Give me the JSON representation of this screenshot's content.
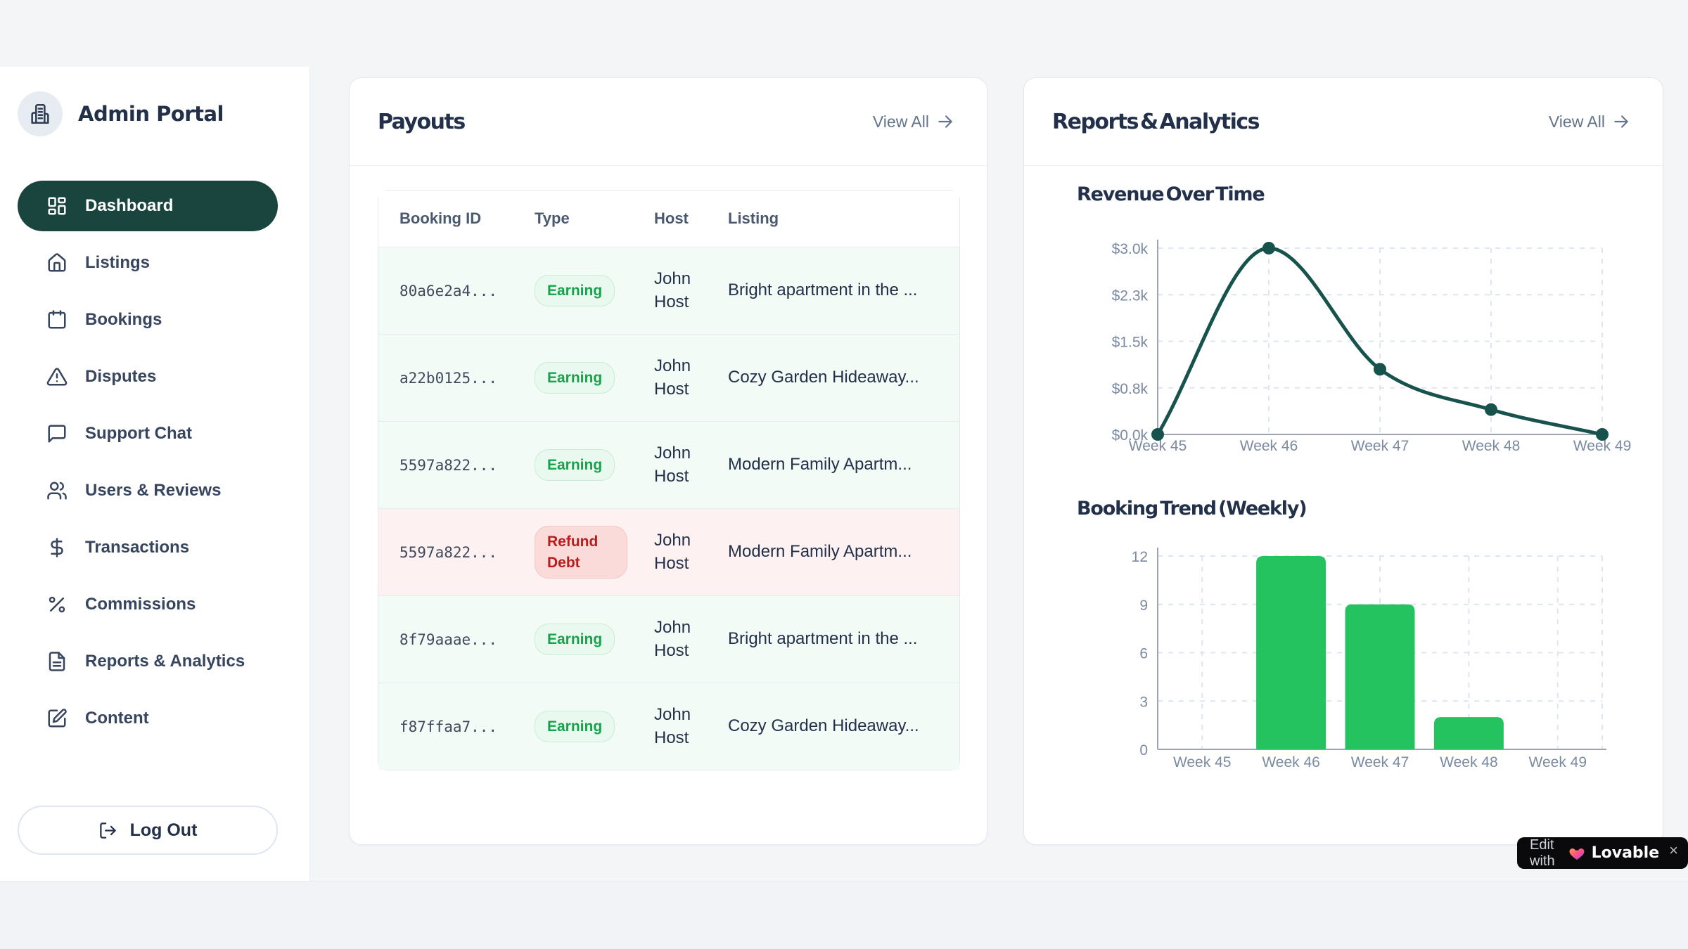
{
  "colors": {
    "accent_dark_teal": "#1a453f",
    "line_color": "#17534c",
    "bar_color": "#25c360",
    "earning_green": "#16a34a",
    "refund_red": "#bb1b1b",
    "page_background": "#f3f5f7"
  },
  "sidebar": {
    "app_title": "Admin Portal",
    "items": [
      {
        "label": "Dashboard",
        "icon": "dashboard",
        "active": true
      },
      {
        "label": "Listings",
        "icon": "home",
        "active": false
      },
      {
        "label": "Bookings",
        "icon": "calendar",
        "active": false
      },
      {
        "label": "Disputes",
        "icon": "alert-triangle",
        "active": false
      },
      {
        "label": "Support Chat",
        "icon": "message-square",
        "active": false
      },
      {
        "label": "Users & Reviews",
        "icon": "users",
        "active": false
      },
      {
        "label": "Transactions",
        "icon": "dollar",
        "active": false
      },
      {
        "label": "Commissions",
        "icon": "percent",
        "active": false
      },
      {
        "label": "Reports & Analytics",
        "icon": "file-text",
        "active": false
      },
      {
        "label": "Content",
        "icon": "file-edit",
        "active": false
      }
    ],
    "logout_label": "Log Out"
  },
  "payouts": {
    "title": "Payouts",
    "view_all_label": "View All",
    "table": {
      "headers": [
        "Booking ID",
        "Type",
        "Host",
        "Listing"
      ],
      "rows": [
        {
          "booking_id": "80a6e2a4...",
          "type": "Earning",
          "host": "John Host",
          "listing": "Bright apartment in the ...",
          "tone": "green"
        },
        {
          "booking_id": "a22b0125...",
          "type": "Earning",
          "host": "John Host",
          "listing": "Cozy Garden Hideaway...",
          "tone": "green"
        },
        {
          "booking_id": "5597a822...",
          "type": "Earning",
          "host": "John Host",
          "listing": "Modern Family Apartm...",
          "tone": "green"
        },
        {
          "booking_id": "5597a822...",
          "type": "Refund Debt",
          "host": "John Host",
          "listing": "Modern Family Apartm...",
          "tone": "red"
        },
        {
          "booking_id": "8f79aaae...",
          "type": "Earning",
          "host": "John Host",
          "listing": "Bright apartment in the ...",
          "tone": "green"
        },
        {
          "booking_id": "f87ffaa7...",
          "type": "Earning",
          "host": "John Host",
          "listing": "Cozy Garden Hideaway...",
          "tone": "green"
        }
      ]
    }
  },
  "reports": {
    "title": "Reports & Analytics",
    "view_all_label": "View All"
  },
  "chart_data": [
    {
      "type": "line",
      "title": "Revenue Over Time",
      "x": [
        "Week 45",
        "Week 46",
        "Week 47",
        "Week 48",
        "Week 49"
      ],
      "values": [
        0,
        3000,
        1050,
        400,
        0
      ],
      "y_ticks": [
        {
          "value": 0,
          "label": "$0.0k"
        },
        {
          "value": 750,
          "label": "$0.8k"
        },
        {
          "value": 1500,
          "label": "$1.5k"
        },
        {
          "value": 2250,
          "label": "$2.3k"
        },
        {
          "value": 3000,
          "label": "$3.0k"
        }
      ],
      "ylim": [
        0,
        3000
      ],
      "grid": true,
      "legend": "none",
      "line_color": "#17534c"
    },
    {
      "type": "bar",
      "title": "Booking Trend (Weekly)",
      "categories": [
        "Week 45",
        "Week 46",
        "Week 47",
        "Week 48",
        "Week 49"
      ],
      "values": [
        0,
        12,
        9,
        2,
        0
      ],
      "y_ticks": [
        {
          "value": 0,
          "label": "0"
        },
        {
          "value": 3,
          "label": "3"
        },
        {
          "value": 6,
          "label": "6"
        },
        {
          "value": 9,
          "label": "9"
        },
        {
          "value": 12,
          "label": "12"
        }
      ],
      "ylim": [
        0,
        12
      ],
      "grid": true,
      "legend": "none",
      "bar_color": "#25c360"
    }
  ],
  "lovable_badge": {
    "prefix": "Edit with",
    "brand": "Lovable",
    "close": "×"
  }
}
